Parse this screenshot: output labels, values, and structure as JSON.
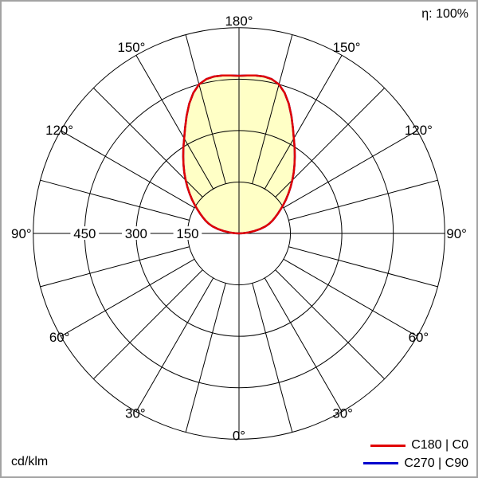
{
  "header": {
    "efficiency": "η: 100%"
  },
  "footer": {
    "unit": "cd/klm"
  },
  "legend": {
    "entries": [
      {
        "label": "C180 | C0",
        "color": "#e10000"
      },
      {
        "label": "C270 | C90",
        "color": "#0000cd"
      }
    ]
  },
  "chart_data": {
    "type": "line",
    "variant": "polar-luminous-intensity-distribution",
    "unit": "cd/klm",
    "efficiency": "η: 100%",
    "orientation": "0° at bottom, 180° at top, gamma mirrored left/right",
    "radial_max": 600,
    "ring_values": [
      150,
      300,
      450,
      600
    ],
    "radial_ticks": [
      {
        "value": 150,
        "label": "150"
      },
      {
        "value": 300,
        "label": "300"
      },
      {
        "value": 450,
        "label": "450"
      }
    ],
    "angle_step_deg": 15,
    "angle_labels": [
      {
        "deg": 0,
        "text": "0°"
      },
      {
        "deg": 30,
        "text": "30°"
      },
      {
        "deg": 60,
        "text": "60°"
      },
      {
        "deg": 90,
        "text": "90°"
      },
      {
        "deg": 120,
        "text": "120°"
      },
      {
        "deg": 150,
        "text": "150°"
      },
      {
        "deg": 180,
        "text": "180°"
      }
    ],
    "series": [
      {
        "name": "C180 | C0",
        "color": "#e10000",
        "fill": "#ffffc6",
        "symmetric": true,
        "gamma_deg": [
          0,
          15,
          30,
          45,
          60,
          75,
          90,
          105,
          120,
          135,
          150,
          165,
          180
        ],
        "values": [
          0,
          0,
          0,
          0,
          0,
          0,
          0,
          80,
          140,
          220,
          320,
          450,
          460
        ]
      },
      {
        "name": "C270 | C90",
        "color": "#0000cd",
        "fill": null,
        "symmetric": true,
        "gamma_deg": [
          0,
          15,
          30,
          45,
          60,
          75,
          90,
          105,
          120,
          135,
          150,
          165,
          180
        ],
        "values": [
          0,
          0,
          0,
          0,
          0,
          0,
          0,
          80,
          140,
          220,
          320,
          450,
          460
        ]
      }
    ]
  }
}
